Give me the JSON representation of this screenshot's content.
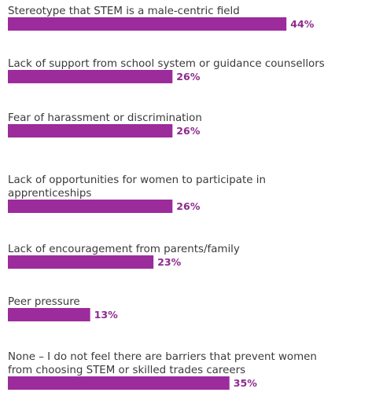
{
  "chart_data": {
    "type": "bar",
    "orientation": "horizontal",
    "categories": [
      [
        "Stereotype that STEM is a male-centric field"
      ],
      [
        "Lack of support from school system or guidance counsellors"
      ],
      [
        "Fear of harassment or discrimination"
      ],
      [
        "Lack of opportunities for women to participate in",
        "apprenticeships"
      ],
      [
        "Lack of encouragement from parents/family"
      ],
      [
        "Peer pressure"
      ],
      [
        "None – I do not feel there are barriers that prevent women",
        "from choosing STEM or skilled trades careers"
      ]
    ],
    "values": [
      44,
      26,
      26,
      26,
      23,
      13,
      35
    ],
    "value_labels": [
      "44%",
      "26%",
      "26%",
      "26%",
      "23%",
      "13%",
      "35%"
    ],
    "value_unit": "%",
    "bar_color": "#9c2b9c",
    "label_color": "#8e2b8e",
    "text_color": "#3a3a3a",
    "grid": false,
    "legend": "none"
  }
}
